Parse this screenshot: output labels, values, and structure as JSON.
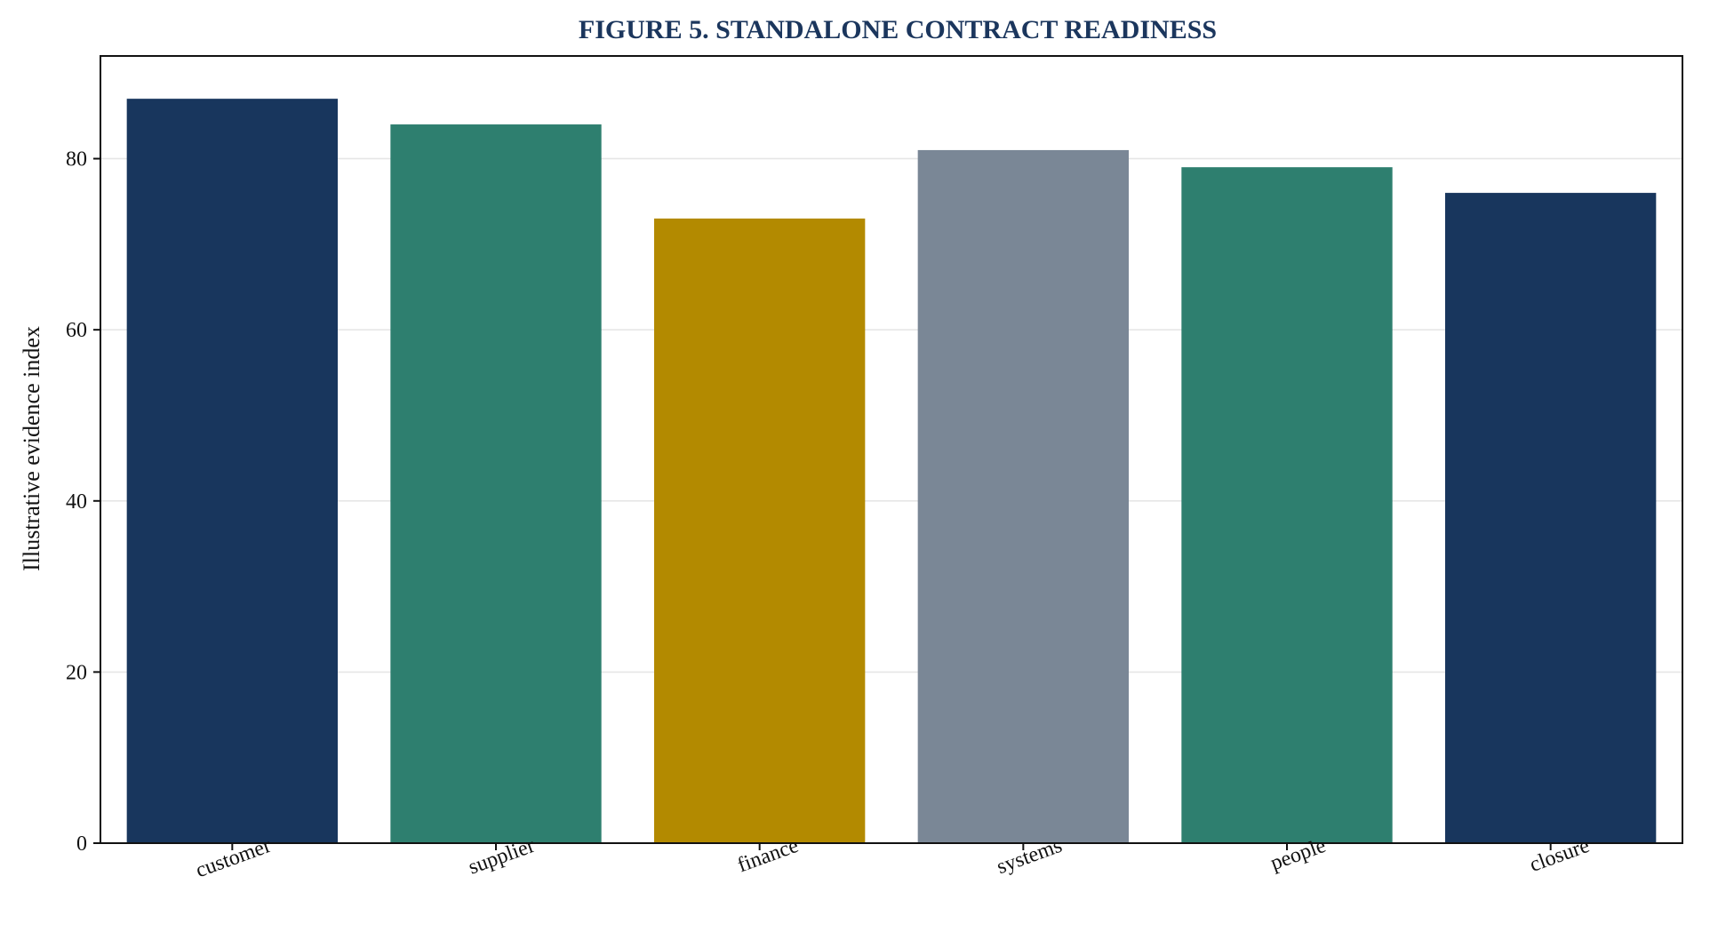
{
  "chart_data": {
    "type": "bar",
    "title": "FIGURE 5. STANDALONE CONTRACT READINESS",
    "xlabel": "",
    "ylabel": "Illustrative evidence index",
    "categories": [
      "customer",
      "supplier",
      "finance",
      "systems",
      "people",
      "closure"
    ],
    "values": [
      87,
      84,
      73,
      81,
      79,
      76
    ],
    "colors": [
      "#18365d",
      "#2e7f6f",
      "#b38a00",
      "#7a8796",
      "#2e7f6f",
      "#18365d"
    ],
    "ylim": [
      0,
      92
    ],
    "yticks": [
      0,
      20,
      40,
      60,
      80
    ],
    "grid": true,
    "legend": "none"
  }
}
